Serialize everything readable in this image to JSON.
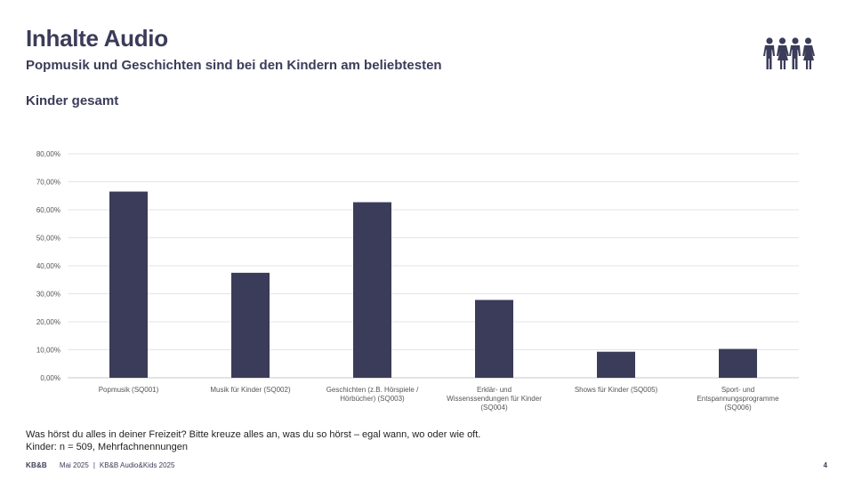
{
  "header": {
    "title": "Inhalte Audio",
    "subtitle": "Popmusik und Geschichten sind bei den Kindern am beliebtesten",
    "section": "Kinder gesamt",
    "icon": "family-people-icon"
  },
  "chart_data": {
    "type": "bar",
    "categories": [
      [
        "Popmusik (SQ001)"
      ],
      [
        "Musik für Kinder (SQ002)"
      ],
      [
        "Geschichten (z.B. Hörspiele /",
        "Hörbücher) (SQ003)"
      ],
      [
        "Erklär- und",
        "Wissenssendungen für Kinder",
        "(SQ004)"
      ],
      [
        "Shows für Kinder (SQ005)"
      ],
      [
        "Sport- und",
        "Entspannungsprogramme",
        "(SQ006)"
      ]
    ],
    "values": [
      66.5,
      37.5,
      62.7,
      27.8,
      9.3,
      10.3
    ],
    "ylim": [
      0,
      80
    ],
    "yticks": [
      "0,00%",
      "10,00%",
      "20,00%",
      "30,00%",
      "40,00%",
      "50,00%",
      "60,00%",
      "70,00%",
      "80,00%"
    ],
    "bar_color": "#3b3c59",
    "grid": true
  },
  "notes": {
    "question": "Was hörst du alles in deiner Freizeit? Bitte kreuze alles an, was du so hörst – egal wann, wo oder wie oft.",
    "sample": "Kinder: n = 509, Mehrfachnennungen"
  },
  "footer": {
    "logo": "KB&B",
    "date": "Mai 2025",
    "separator": "|",
    "study": "KB&B Audio&Kids 2025",
    "page": "4"
  }
}
